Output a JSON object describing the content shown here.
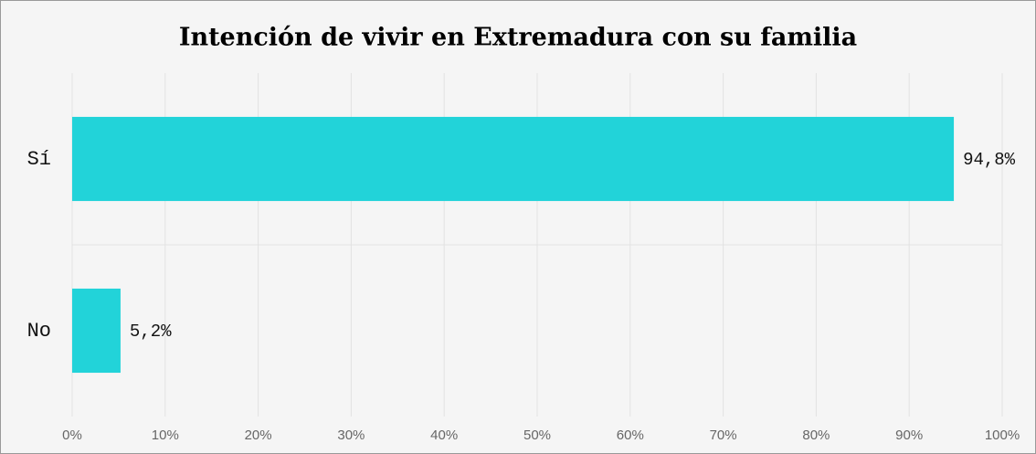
{
  "chart_data": {
    "type": "bar",
    "orientation": "horizontal",
    "title": "Intención de vivir en Extremadura con su familia",
    "categories": [
      "Sí",
      "No"
    ],
    "values": [
      94.8,
      5.2
    ],
    "value_labels": [
      "94,8%",
      "5,2%"
    ],
    "color": "#22d3d9",
    "xlim": [
      0,
      100
    ],
    "xticks": [
      {
        "value": 0,
        "label": "0%"
      },
      {
        "value": 10,
        "label": "10%"
      },
      {
        "value": 20,
        "label": "20%"
      },
      {
        "value": 30,
        "label": "30%"
      },
      {
        "value": 40,
        "label": "40%"
      },
      {
        "value": 50,
        "label": "50%"
      },
      {
        "value": 60,
        "label": "60%"
      },
      {
        "value": 70,
        "label": "70%"
      },
      {
        "value": 80,
        "label": "80%"
      },
      {
        "value": 90,
        "label": "90%"
      },
      {
        "value": 100,
        "label": "100%"
      }
    ],
    "grid": true
  }
}
